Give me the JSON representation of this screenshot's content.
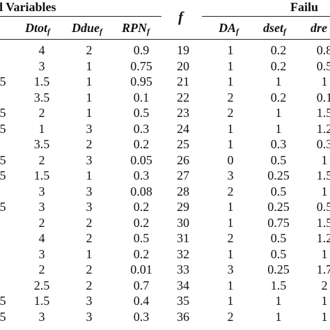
{
  "table": {
    "group_header_left": "d Variables",
    "group_header_right": "Failu",
    "f_header": "f",
    "columns_left": [
      {
        "name": "f",
        "sub": "f"
      },
      {
        "name": "Dtot",
        "sub": "f"
      },
      {
        "name": "Ddue",
        "sub": "f"
      },
      {
        "name": "RPN",
        "sub": "f"
      }
    ],
    "columns_right": [
      {
        "name": "DA",
        "sub": "f"
      },
      {
        "name": "dset",
        "sub": "f"
      },
      {
        "name": "dre",
        "sub": ""
      }
    ],
    "rows": [
      {
        "c0": "",
        "dtot": "4",
        "ddue": "2",
        "rpn": "0.9",
        "f": "19",
        "da": "1",
        "dset": "0.2",
        "dre": "0.8"
      },
      {
        "c0": "",
        "dtot": "3",
        "ddue": "1",
        "rpn": "0.75",
        "f": "20",
        "da": "1",
        "dset": "0.2",
        "dre": "0.5"
      },
      {
        "c0": "5",
        "dtot": "1.5",
        "ddue": "1",
        "rpn": "0.95",
        "f": "21",
        "da": "1",
        "dset": "1",
        "dre": "1"
      },
      {
        "c0": "",
        "dtot": "3.5",
        "ddue": "1",
        "rpn": "0.1",
        "f": "22",
        "da": "2",
        "dset": "0.2",
        "dre": "0.1"
      },
      {
        "c0": "5",
        "dtot": "2",
        "ddue": "1",
        "rpn": "0.5",
        "f": "23",
        "da": "2",
        "dset": "1",
        "dre": "1.5"
      },
      {
        "c0": "5",
        "dtot": "1",
        "ddue": "3",
        "rpn": "0.3",
        "f": "24",
        "da": "1",
        "dset": "1",
        "dre": "1.2"
      },
      {
        "c0": "",
        "dtot": "3.5",
        "ddue": "2",
        "rpn": "0.2",
        "f": "25",
        "da": "1",
        "dset": "0.3",
        "dre": "0.3"
      },
      {
        "c0": "5",
        "dtot": "2",
        "ddue": "3",
        "rpn": "0.05",
        "f": "26",
        "da": "0",
        "dset": "0.5",
        "dre": "1"
      },
      {
        "c0": "5",
        "dtot": "1.5",
        "ddue": "1",
        "rpn": "0.3",
        "f": "27",
        "da": "3",
        "dset": "0.25",
        "dre": "1.5"
      },
      {
        "c0": "",
        "dtot": "3",
        "ddue": "3",
        "rpn": "0.08",
        "f": "28",
        "da": "2",
        "dset": "0.5",
        "dre": "1"
      },
      {
        "c0": "5",
        "dtot": "3",
        "ddue": "3",
        "rpn": "0.2",
        "f": "29",
        "da": "1",
        "dset": "0.25",
        "dre": "0.5"
      },
      {
        "c0": "",
        "dtot": "2",
        "ddue": "2",
        "rpn": "0.2",
        "f": "30",
        "da": "1",
        "dset": "0.75",
        "dre": "1.5"
      },
      {
        "c0": "",
        "dtot": "4",
        "ddue": "2",
        "rpn": "0.5",
        "f": "31",
        "da": "2",
        "dset": "0.5",
        "dre": "1.2"
      },
      {
        "c0": "",
        "dtot": "3",
        "ddue": "1",
        "rpn": "0.2",
        "f": "32",
        "da": "1",
        "dset": "0.5",
        "dre": "1"
      },
      {
        "c0": "",
        "dtot": "2",
        "ddue": "2",
        "rpn": "0.01",
        "f": "33",
        "da": "3",
        "dset": "0.25",
        "dre": "1.7"
      },
      {
        "c0": "",
        "dtot": "2.5",
        "ddue": "2",
        "rpn": "0.7",
        "f": "34",
        "da": "1",
        "dset": "1.5",
        "dre": "2"
      },
      {
        "c0": "5",
        "dtot": "1.5",
        "ddue": "3",
        "rpn": "0.4",
        "f": "35",
        "da": "1",
        "dset": "1",
        "dre": "1"
      },
      {
        "c0": "5",
        "dtot": "3",
        "ddue": "3",
        "rpn": "0.3",
        "f": "36",
        "da": "2",
        "dset": "1",
        "dre": "1"
      }
    ]
  }
}
